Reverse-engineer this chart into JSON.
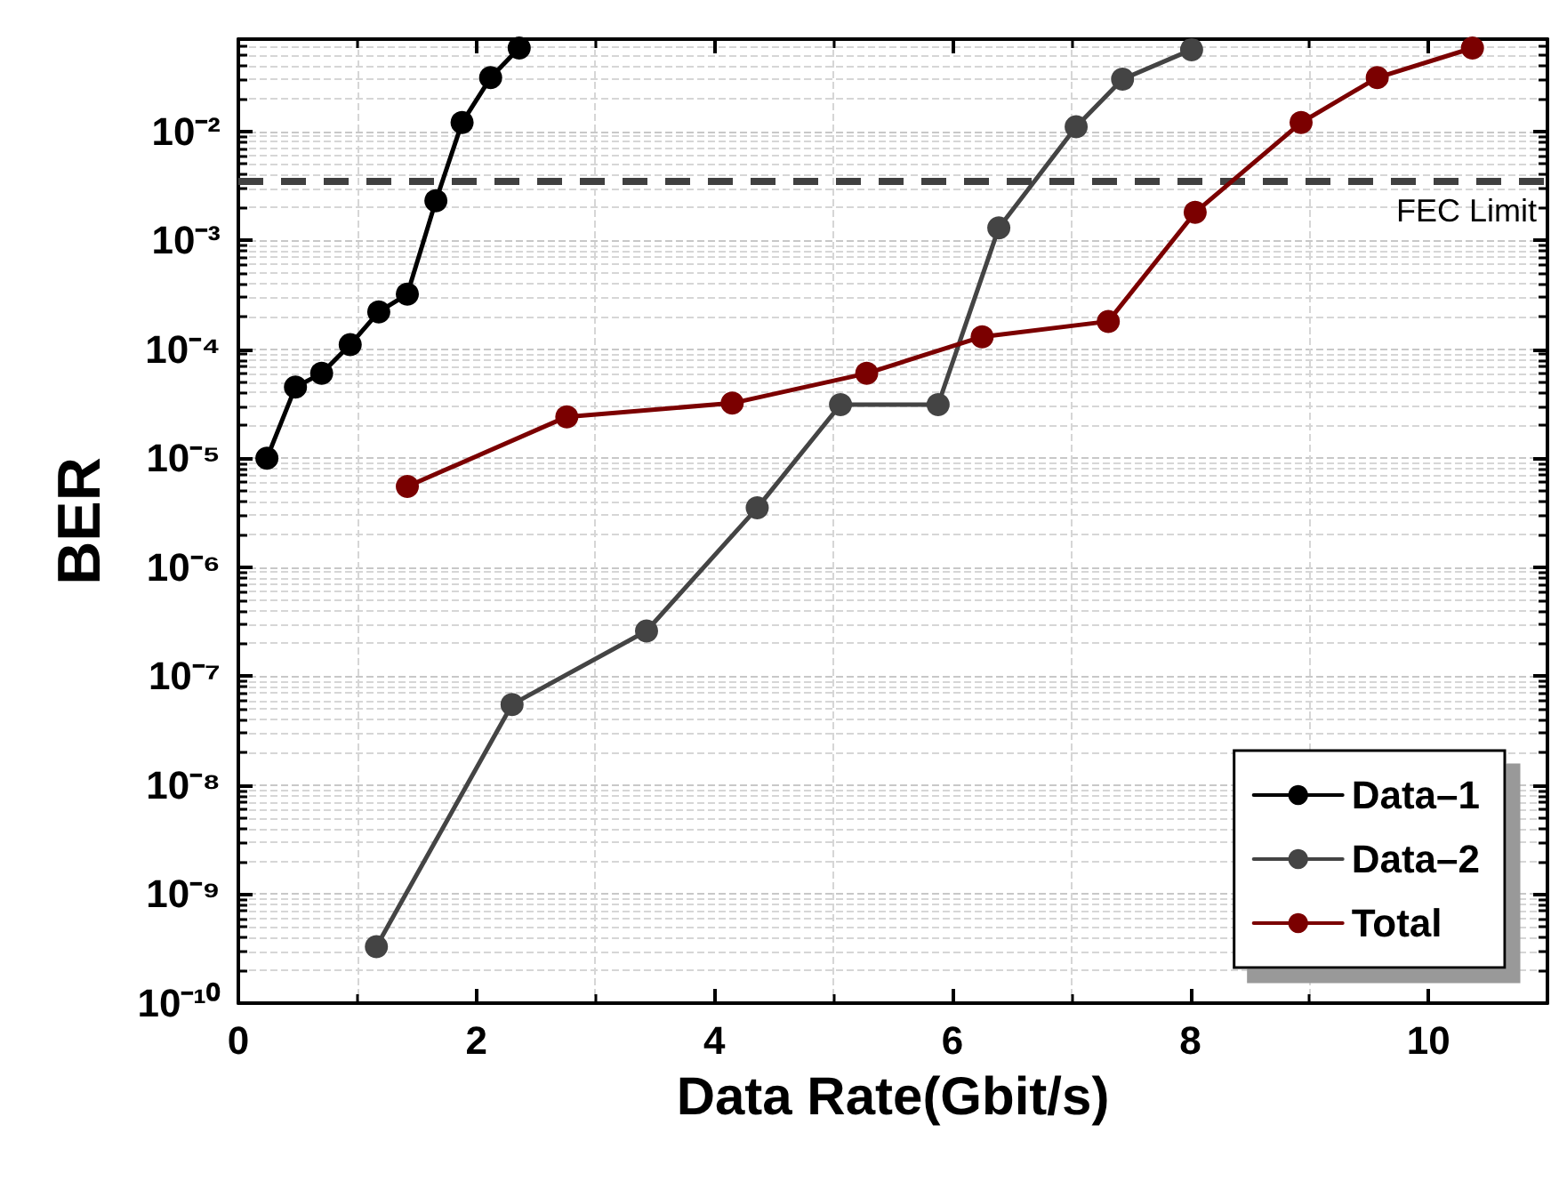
{
  "chart_data": {
    "type": "line",
    "xlabel": "Data Rate(Gbit/s)",
    "ylabel": "BER",
    "xlim": [
      0,
      11
    ],
    "xticks": [
      0,
      2,
      4,
      6,
      8,
      10
    ],
    "ylim": [
      1e-10,
      0.07
    ],
    "log": "y",
    "yticks": [
      {
        "value": 1e-10,
        "label": "10⁻¹⁰"
      },
      {
        "value": 1e-09,
        "label": "10⁻⁹"
      },
      {
        "value": 1e-08,
        "label": "10⁻⁸"
      },
      {
        "value": 1e-07,
        "label": "10⁻⁷"
      },
      {
        "value": 1e-06,
        "label": "10⁻⁶"
      },
      {
        "value": 1e-05,
        "label": "10⁻⁵"
      },
      {
        "value": 0.0001,
        "label": "10⁻⁴"
      },
      {
        "value": 0.001,
        "label": "10⁻³"
      },
      {
        "value": 0.01,
        "label": "10⁻²"
      }
    ],
    "grid": true,
    "legend": "bottom right",
    "marker": "circle",
    "line_style": "solid",
    "series": [
      {
        "name": "Data–1",
        "color": "#000000",
        "x": [
          0.24,
          0.48,
          0.7,
          0.94,
          1.18,
          1.42,
          1.66,
          1.88,
          2.12,
          2.36
        ],
        "values": [
          1e-05,
          4.5e-05,
          6e-05,
          0.00011,
          0.00022,
          0.00032,
          0.0023,
          0.012,
          0.031,
          0.058
        ]
      },
      {
        "name": "Data–2",
        "color": "#444444",
        "x": [
          1.16,
          2.3,
          3.43,
          4.36,
          5.06,
          5.88,
          6.39,
          7.04,
          7.43,
          8.01
        ],
        "values": [
          3.3e-10,
          5.5e-08,
          2.6e-07,
          3.5e-06,
          3.1e-05,
          3.1e-05,
          0.0013,
          0.011,
          0.03,
          0.056
        ]
      },
      {
        "name": "Total",
        "color": "#7b0000",
        "x": [
          1.42,
          2.76,
          4.15,
          5.28,
          6.25,
          7.31,
          8.04,
          8.93,
          9.57,
          10.37
        ],
        "values": [
          5.5e-06,
          2.4e-05,
          3.2e-05,
          6e-05,
          0.00013,
          0.00018,
          0.0018,
          0.012,
          0.031,
          0.058
        ]
      }
    ],
    "ref_lines": [
      {
        "axis": "y",
        "value": 0.0035,
        "label": "FEC Limit",
        "color": "#404040",
        "line_style": "dashed"
      }
    ]
  }
}
